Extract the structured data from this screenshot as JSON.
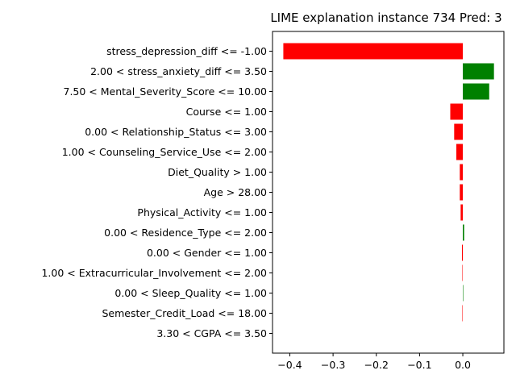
{
  "chart_data": {
    "type": "bar",
    "orientation": "horizontal",
    "title": "LIME explanation instance 734 Pred: 3",
    "xlabel": "",
    "ylabel": "",
    "xlim": [
      -0.44,
      0.095
    ],
    "xticks": [
      -0.4,
      -0.3,
      -0.2,
      -0.1,
      0.0
    ],
    "xtick_labels": [
      "−0.4",
      "−0.3",
      "−0.2",
      "−0.1",
      "0.0"
    ],
    "grid": false,
    "legend": "none",
    "colors": {
      "positive": "#008000",
      "negative": "#ff0000"
    },
    "categories": [
      "stress_depression_diff <= -1.00",
      "2.00 < stress_anxiety_diff <= 3.50",
      "7.50 < Mental_Severity_Score <= 10.00",
      "Course <= 1.00",
      "0.00 < Relationship_Status <= 3.00",
      "1.00 < Counseling_Service_Use <= 2.00",
      "Diet_Quality > 1.00",
      "Age > 28.00",
      "Physical_Activity <= 1.00",
      "0.00 < Residence_Type <= 2.00",
      "0.00 < Gender <= 1.00",
      "1.00 < Extracurricular_Involvement <= 2.00",
      "0.00 < Sleep_Quality <= 1.00",
      "Semester_Credit_Load <= 18.00",
      "3.30 < CGPA <= 3.50"
    ],
    "values": [
      -0.415,
      0.072,
      0.061,
      -0.029,
      -0.02,
      -0.015,
      -0.007,
      -0.007,
      -0.005,
      0.003,
      -0.002,
      -0.001,
      0.001,
      -0.001,
      0.0
    ]
  }
}
